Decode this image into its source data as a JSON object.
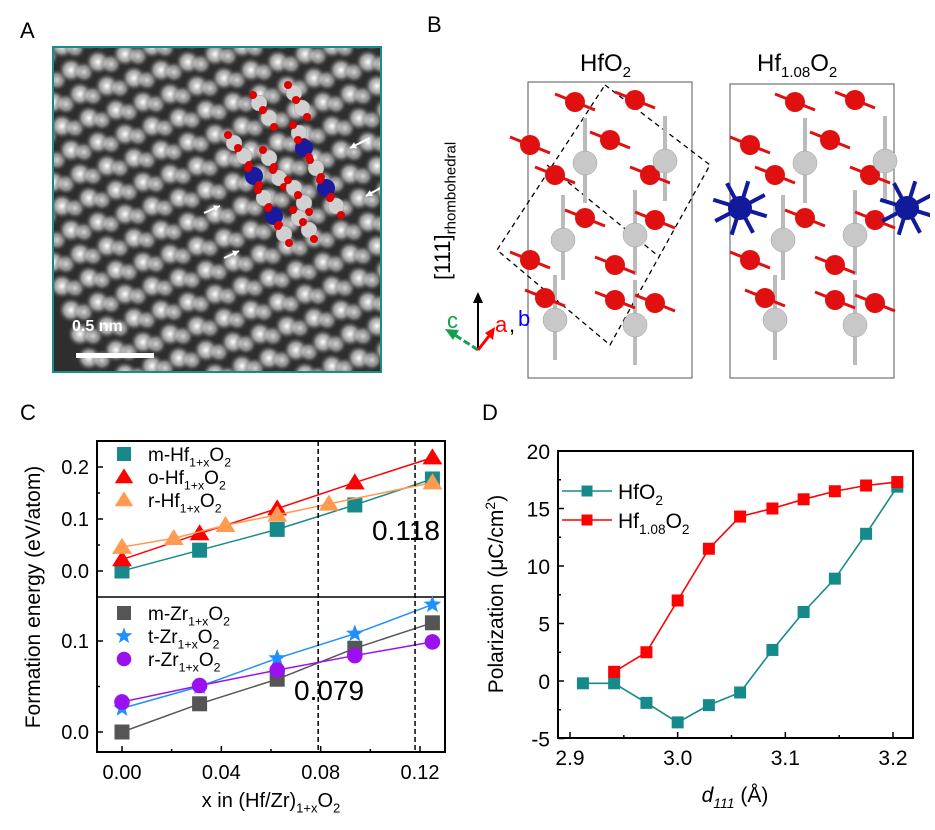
{
  "panels": {
    "a": {
      "label": "A",
      "scale_bar_text": "0.5 nm",
      "arrow_count": 4
    },
    "b": {
      "label": "B",
      "titles": [
        "HfO",
        "2",
        "Hf",
        "1.08",
        "O",
        "2"
      ],
      "direction_label_main": "[111]",
      "direction_label_sub": "rhombohedral",
      "axis_labels": {
        "c": "c",
        "a": "a",
        "comma": ",",
        "b": "b"
      },
      "axis_colors": {
        "c": "#12a04a",
        "a": "#ff0000",
        "b": "#0000ff",
        "vertical": "#000000"
      },
      "atom_colors": {
        "Hf": "#c8c8c8",
        "O": "#e01010",
        "Hf_interstitial": "#101a9a"
      }
    },
    "c": {
      "label": "C"
    },
    "d": {
      "label": "D"
    }
  },
  "chart_data": [
    {
      "type": "line",
      "panel": "C",
      "title": "",
      "xlabel": "x in (Hf/Zr)1+xO2",
      "xlabel_parts": [
        "x in (Hf/Zr)",
        "1+x",
        "O",
        "2"
      ],
      "ylabel": "Formation energy (eV/atom)",
      "xlim": [
        -0.01,
        0.135
      ],
      "x_ticks": [
        "0.00",
        "0.04",
        "0.08",
        "0.12"
      ],
      "x_tick_values": [
        0.0,
        0.04,
        0.08,
        0.12
      ],
      "subplots": [
        {
          "name": "Hf",
          "ylim": [
            -0.02,
            0.245
          ],
          "y_ticks": [
            "0.0",
            "0.1",
            "0.2"
          ],
          "y_tick_values": [
            0.0,
            0.1,
            0.2
          ],
          "legend_position": "top-left",
          "series": [
            {
              "name": "m-Hf1+xO2",
              "legend_parts": [
                "m-Hf",
                "1+x",
                "O",
                "2"
              ],
              "color": "#168a8a",
              "marker": "square",
              "x": [
                0.0,
                0.03125,
                0.0625,
                0.09375,
                0.125
              ],
              "y": [
                0.0,
                0.04,
                0.08,
                0.127,
                0.177
              ]
            },
            {
              "name": "o-Hf1+xO2",
              "legend_parts": [
                "o-Hf",
                "1+x",
                "O",
                "2"
              ],
              "color": "#ff0000",
              "marker": "triangle",
              "x": [
                0.0,
                0.03125,
                0.0625,
                0.09375,
                0.125
              ],
              "y": [
                0.022,
                0.072,
                0.12,
                0.17,
                0.218
              ]
            },
            {
              "name": "r-Hf1+xO2",
              "legend_parts": [
                "r-Hf",
                "1+x",
                "O",
                "2"
              ],
              "color": "#ff9a50",
              "marker": "triangle",
              "x": [
                0.0,
                0.02083,
                0.04167,
                0.0625,
                0.08333,
                0.125
              ],
              "y": [
                0.046,
                0.063,
                0.088,
                0.108,
                0.129,
                0.17
              ]
            }
          ],
          "annotation": {
            "text": "0.118",
            "vline_x": 0.118
          }
        },
        {
          "name": "Zr",
          "ylim": [
            -0.02,
            0.155
          ],
          "y_ticks": [
            "0.0",
            "0.1"
          ],
          "y_tick_values": [
            0.0,
            0.1
          ],
          "legend_position": "top-left",
          "series": [
            {
              "name": "m-Zr1+xO2",
              "legend_parts": [
                "m-Zr",
                "1+x",
                "O",
                "2"
              ],
              "color": "#555555",
              "marker": "square",
              "x": [
                0.0,
                0.03125,
                0.0625,
                0.09375,
                0.125
              ],
              "y": [
                0.0,
                0.031,
                0.058,
                0.092,
                0.12
              ]
            },
            {
              "name": "t-Zr1+xO2",
              "legend_parts": [
                "t-Zr",
                "1+x",
                "O",
                "2"
              ],
              "color": "#1e90ff",
              "marker": "star",
              "x": [
                0.0,
                0.03125,
                0.0625,
                0.09375,
                0.125
              ],
              "y": [
                0.026,
                0.05,
                0.081,
                0.108,
                0.14
              ]
            },
            {
              "name": "r-Zr1+xO2",
              "legend_parts": [
                "r-Zr",
                "1+x",
                "O",
                "2"
              ],
              "color": "#9b10f0",
              "marker": "circle",
              "x": [
                0.0,
                0.03125,
                0.0625,
                0.09375,
                0.125
              ],
              "y": [
                0.033,
                0.051,
                0.068,
                0.084,
                0.099
              ]
            }
          ],
          "annotation": {
            "text": "0.079",
            "vline_x": 0.079
          }
        }
      ],
      "vlines": [
        0.079,
        0.118
      ]
    },
    {
      "type": "line",
      "panel": "D",
      "title": "",
      "xlabel": "d111 (Å)",
      "xlabel_parts": [
        "d",
        "111",
        " (Å)"
      ],
      "ylabel": "Polarization (μC/cm2)",
      "ylabel_parts": [
        "Polarization (μC/cm",
        "2",
        ")"
      ],
      "xlim": [
        2.89,
        3.22
      ],
      "ylim": [
        -5,
        20
      ],
      "x_ticks": [
        "2.9",
        "3.0",
        "3.1",
        "3.2"
      ],
      "x_tick_values": [
        2.9,
        3.0,
        3.1,
        3.2
      ],
      "y_ticks": [
        "-5",
        "0",
        "5",
        "10",
        "15",
        "20"
      ],
      "y_tick_values": [
        -5,
        0,
        5,
        10,
        15,
        20
      ],
      "legend_position": "top-left",
      "series": [
        {
          "name": "HfO2",
          "legend_parts": [
            "HfO",
            "2",
            ""
          ],
          "color": "#168a8a",
          "marker": "square",
          "x": [
            2.912,
            2.941,
            2.971,
            3.0,
            3.029,
            3.058,
            3.088,
            3.117,
            3.146,
            3.175,
            3.204
          ],
          "y": [
            -0.2,
            -0.2,
            -1.9,
            -3.6,
            -2.1,
            -1.0,
            2.7,
            6.0,
            8.9,
            12.8,
            16.9
          ]
        },
        {
          "name": "Hf1.08O2",
          "legend_parts": [
            "Hf",
            "1.08",
            "O",
            "2"
          ],
          "color": "#ff0000",
          "marker": "square",
          "x": [
            2.941,
            2.971,
            3.0,
            3.029,
            3.058,
            3.088,
            3.117,
            3.146,
            3.175,
            3.204
          ],
          "y": [
            0.8,
            2.5,
            7.0,
            11.5,
            14.3,
            15.0,
            15.8,
            16.5,
            17.0,
            17.3
          ]
        }
      ]
    }
  ]
}
